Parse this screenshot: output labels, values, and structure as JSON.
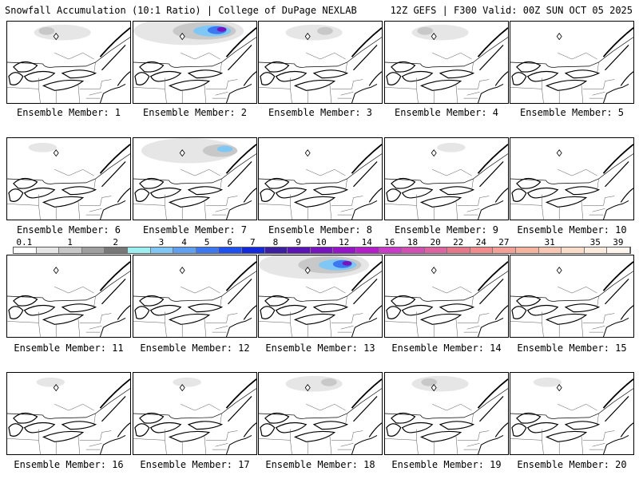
{
  "header": {
    "left": "Snowfall Accumulation (10:1 Ratio) | College of DuPage NEXLAB",
    "right": "12Z GEFS | F300 Valid: 00Z SUN OCT 05 2025"
  },
  "members": [
    {
      "label": "Ensemble Member: 1",
      "snow": "light"
    },
    {
      "label": "Ensemble Member: 2",
      "snow": "heavy"
    },
    {
      "label": "Ensemble Member: 3",
      "snow": "light"
    },
    {
      "label": "Ensemble Member: 4",
      "snow": "light"
    },
    {
      "label": "Ensemble Member: 5",
      "snow": "none"
    },
    {
      "label": "Ensemble Member: 6",
      "snow": "trace"
    },
    {
      "label": "Ensemble Member: 7",
      "snow": "moderate"
    },
    {
      "label": "Ensemble Member: 8",
      "snow": "none"
    },
    {
      "label": "Ensemble Member: 9",
      "snow": "trace"
    },
    {
      "label": "Ensemble Member: 10",
      "snow": "none"
    },
    {
      "label": "Ensemble Member: 11",
      "snow": "none"
    },
    {
      "label": "Ensemble Member: 12",
      "snow": "none"
    },
    {
      "label": "Ensemble Member: 13",
      "snow": "heavy"
    },
    {
      "label": "Ensemble Member: 14",
      "snow": "none"
    },
    {
      "label": "Ensemble Member: 15",
      "snow": "none"
    },
    {
      "label": "Ensemble Member: 16",
      "snow": "trace"
    },
    {
      "label": "Ensemble Member: 17",
      "snow": "trace"
    },
    {
      "label": "Ensemble Member: 18",
      "snow": "light"
    },
    {
      "label": "Ensemble Member: 19",
      "snow": "light"
    },
    {
      "label": "Ensemble Member: 20",
      "snow": "trace"
    }
  ],
  "colorbar": {
    "labels": [
      "0.1",
      "1",
      "2",
      "3",
      "4",
      "5",
      "6",
      "7",
      "8",
      "9",
      "10",
      "12",
      "14",
      "16",
      "18",
      "20",
      "22",
      "24",
      "27",
      "31",
      "35",
      "39"
    ],
    "colors": [
      "#ffffff",
      "#e6e6e6",
      "#c8c8c8",
      "#a0a0a0",
      "#787878",
      "#9ef0f0",
      "#7fc8f5",
      "#5fa0f0",
      "#3c78f0",
      "#1e50f0",
      "#1428dc",
      "#3c1ea0",
      "#5a14b4",
      "#7814be",
      "#9614c8",
      "#b41ec8",
      "#c83cc8",
      "#d250b4",
      "#dc64a0",
      "#e6788c",
      "#f08c8c",
      "#f5a096",
      "#f5b4a0",
      "#f8c8b4",
      "#fadcc8",
      "#fcebdc",
      "#fef6ee"
    ]
  }
}
